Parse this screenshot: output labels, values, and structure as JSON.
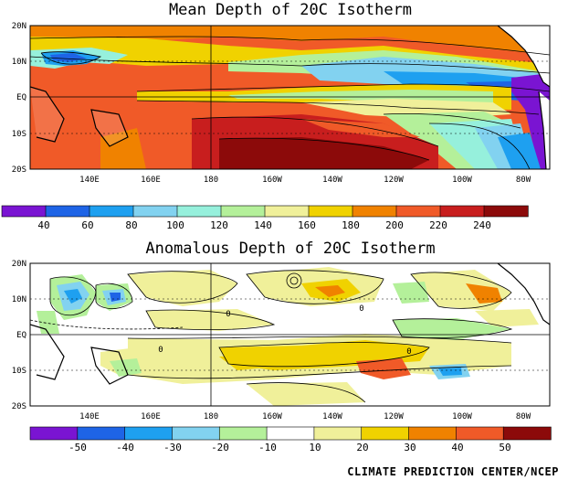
{
  "credit": "CLIMATE PREDICTION CENTER/NCEP",
  "panels": [
    {
      "id": "mean",
      "title": "Mean Depth of 20C Isotherm",
      "lat_labels": [
        "20N",
        "10N",
        "EQ",
        "10S",
        "20S"
      ],
      "lon_labels": [
        "140E",
        "160E",
        "180",
        "160W",
        "140W",
        "120W",
        "100W",
        "80W"
      ],
      "colorbar": {
        "tick_labels": [
          "40",
          "60",
          "80",
          "100",
          "120",
          "140",
          "160",
          "180",
          "200",
          "220",
          "240"
        ],
        "colors": [
          "#7a14d2",
          "#1e64e6",
          "#1ea0f0",
          "#82d2f0",
          "#96f0dc",
          "#b4f09a",
          "#f0f09a",
          "#f0d200",
          "#f08200",
          "#f05a28",
          "#c81e1e",
          "#8c0a0a"
        ]
      }
    },
    {
      "id": "anom",
      "title": "Anomalous Depth of 20C Isotherm",
      "lat_labels": [
        "20N",
        "10N",
        "EQ",
        "10S",
        "20S"
      ],
      "lon_labels": [
        "140E",
        "160E",
        "180",
        "160W",
        "140W",
        "120W",
        "100W",
        "80W"
      ],
      "colorbar": {
        "tick_labels": [
          "-50",
          "-40",
          "-30",
          "-20",
          "-10",
          "10",
          "20",
          "30",
          "40",
          "50"
        ],
        "colors": [
          "#7a14d2",
          "#1e64e6",
          "#1ea0f0",
          "#82d2f0",
          "#b4f09a",
          "#ffffff",
          "#f0f09a",
          "#f0d200",
          "#f08200",
          "#f05a28",
          "#8c0a0a"
        ]
      }
    }
  ],
  "contour_labels": [
    "0"
  ]
}
